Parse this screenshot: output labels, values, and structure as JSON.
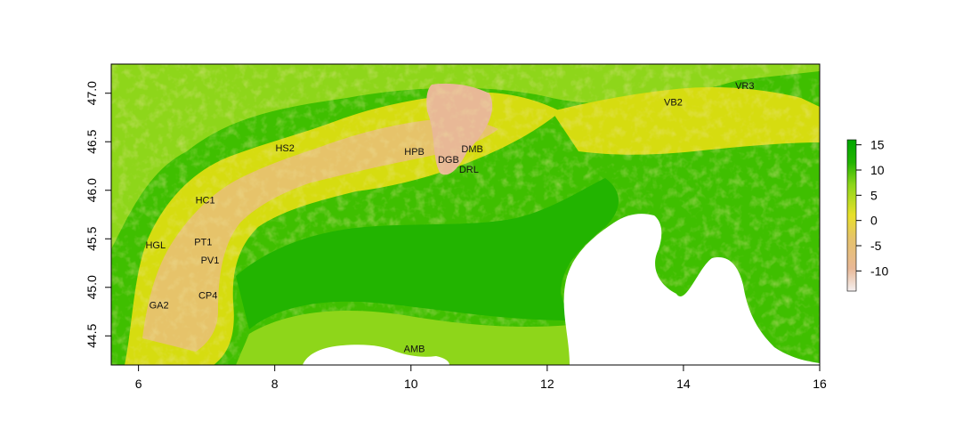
{
  "map": {
    "x_axis": {
      "ticks": [
        6,
        8,
        10,
        12,
        14,
        16
      ],
      "labels": [
        "6",
        "8",
        "10",
        "12",
        "14",
        "16"
      ],
      "range": [
        5.6,
        16.0
      ]
    },
    "y_axis": {
      "ticks": [
        44.5,
        45.0,
        45.5,
        46.0,
        46.5,
        47.0
      ],
      "labels": [
        "44.5",
        "45.0",
        "45.5",
        "46.0",
        "46.5",
        "47.0"
      ],
      "range": [
        44.2,
        47.3
      ]
    },
    "legend": {
      "ticks": [
        15,
        10,
        5,
        0,
        -5,
        -10
      ],
      "labels": [
        "15",
        "10",
        "5",
        "0",
        "-5",
        "-10"
      ],
      "range": [
        -14,
        16
      ],
      "colors": [
        "#f5f0f0",
        "#e8b896",
        "#e6c36a",
        "#e8e02a",
        "#8ed61a",
        "#22b400",
        "#00a600"
      ]
    },
    "colors": {
      "lowland": "#3fbf00",
      "plain": "#22b400",
      "foothill": "#8ed61a",
      "mid": "#d6dc10",
      "high": "#e6c36a",
      "peak": "#e8b896",
      "sea": "#ffffff"
    },
    "stations": [
      {
        "label": "HS2",
        "lon": 8.15,
        "lat": 46.44
      },
      {
        "label": "HPB",
        "lon": 10.05,
        "lat": 46.4
      },
      {
        "label": "DMB",
        "lon": 10.9,
        "lat": 46.43
      },
      {
        "label": "DGB",
        "lon": 10.55,
        "lat": 46.32
      },
      {
        "label": "DRL",
        "lon": 10.85,
        "lat": 46.22
      },
      {
        "label": "HC1",
        "lon": 6.98,
        "lat": 45.9
      },
      {
        "label": "HGL",
        "lon": 6.25,
        "lat": 45.44
      },
      {
        "label": "PT1",
        "lon": 6.95,
        "lat": 45.47
      },
      {
        "label": "PV1",
        "lon": 7.05,
        "lat": 45.28
      },
      {
        "label": "CP4",
        "lon": 7.02,
        "lat": 44.92
      },
      {
        "label": "GA2",
        "lon": 6.3,
        "lat": 44.82
      },
      {
        "label": "AMB",
        "lon": 10.05,
        "lat": 44.37
      },
      {
        "label": "VB2",
        "lon": 13.85,
        "lat": 46.91
      },
      {
        "label": "VR3",
        "lon": 14.9,
        "lat": 47.08
      }
    ]
  }
}
